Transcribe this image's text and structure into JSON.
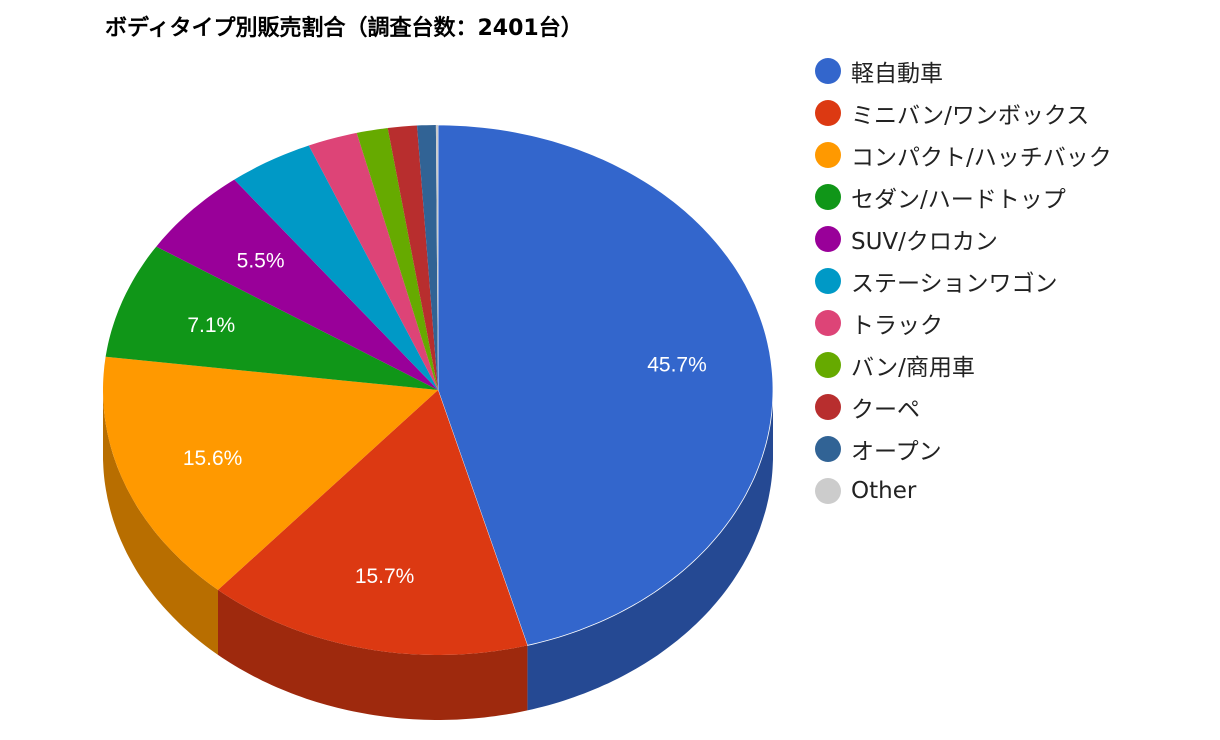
{
  "chart_data": {
    "type": "pie",
    "variant": "3d",
    "title": "ボディタイプ別販売割合（調査台数：2401台）",
    "categories": [
      "軽自動車",
      "ミニバン/ワンボックス",
      "コンパクト/ハッチバック",
      "セダン/ハードトップ",
      "SUV/クロカン",
      "ステーションワゴン",
      "トラック",
      "バン/商用車",
      "クーペ",
      "オープン",
      "Other"
    ],
    "values": [
      45.7,
      15.7,
      15.6,
      7.1,
      5.5,
      4.1,
      2.4,
      1.5,
      1.4,
      0.9,
      0.1
    ],
    "colors": [
      "#3366cc",
      "#dc3912",
      "#ff9900",
      "#109618",
      "#990099",
      "#0099c6",
      "#dd4477",
      "#66aa00",
      "#b82e2e",
      "#316395",
      "#cccccc"
    ],
    "shown_labels": [
      "45.7%",
      "15.7%",
      "15.6%",
      "7.1%",
      "5.5%",
      "",
      "",
      "",
      "",
      "",
      ""
    ],
    "legend_position": "right",
    "unit": "%"
  },
  "title": "ボディタイプ別販売割合（調査台数：2401台）",
  "legend": [
    {
      "label": "軽自動車",
      "color": "#3366cc"
    },
    {
      "label": "ミニバン/ワンボックス",
      "color": "#dc3912"
    },
    {
      "label": "コンパクト/ハッチバック",
      "color": "#ff9900"
    },
    {
      "label": "セダン/ハードトップ",
      "color": "#109618"
    },
    {
      "label": "SUV/クロカン",
      "color": "#990099"
    },
    {
      "label": "ステーションワゴン",
      "color": "#0099c6"
    },
    {
      "label": "トラック",
      "color": "#dd4477"
    },
    {
      "label": "バン/商用車",
      "color": "#66aa00"
    },
    {
      "label": "クーペ",
      "color": "#b82e2e"
    },
    {
      "label": "オープン",
      "color": "#316395"
    },
    {
      "label": "Other",
      "color": "#cccccc"
    }
  ]
}
